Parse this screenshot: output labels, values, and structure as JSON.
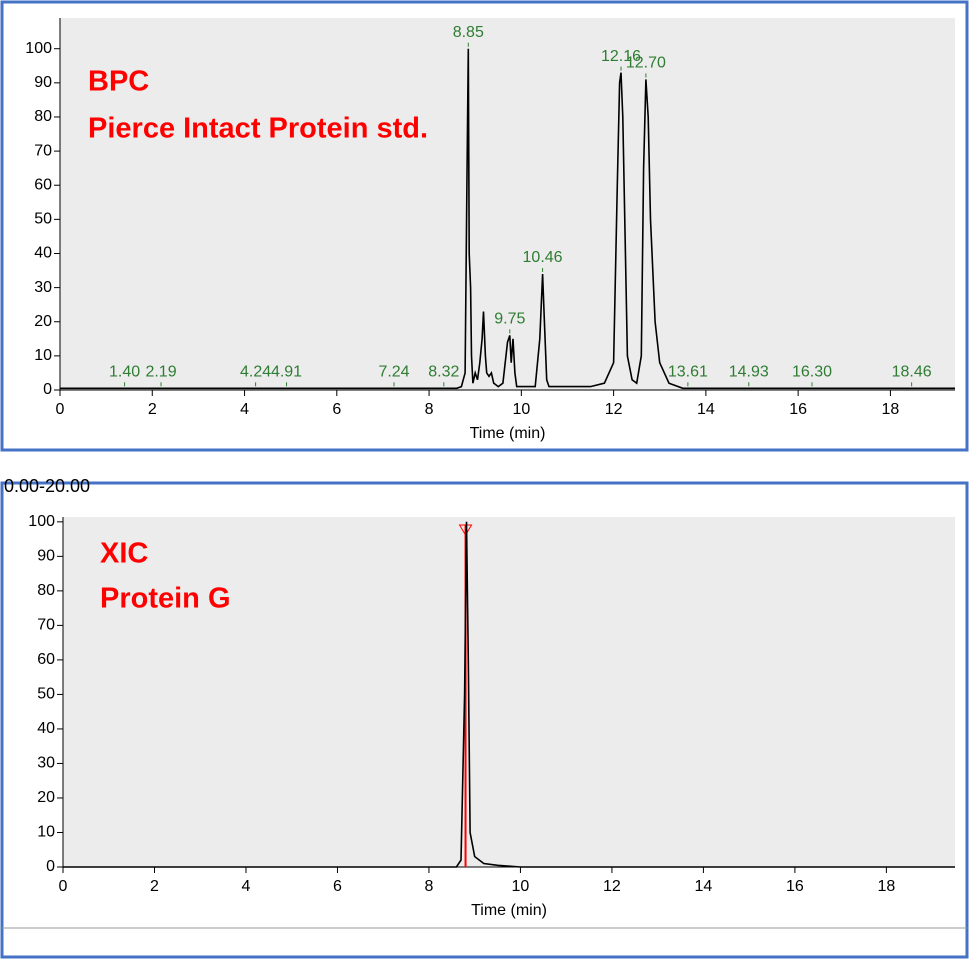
{
  "chart_data": [
    {
      "type": "line",
      "annotations": [
        "BPC",
        "Pierce Intact Protein std."
      ],
      "x_label": "Time (min)",
      "xlim": [
        0,
        19.4
      ],
      "ylim": [
        0,
        109
      ],
      "xticks": [
        0,
        2,
        4,
        6,
        8,
        10,
        12,
        14,
        16,
        18
      ],
      "yticks": [
        0,
        10,
        20,
        30,
        40,
        50,
        60,
        70,
        80,
        90,
        100
      ],
      "color": "#000000",
      "x": [
        0,
        1,
        2,
        3,
        4,
        5,
        6,
        7,
        8,
        8.6,
        8.7,
        8.78,
        8.82,
        8.85,
        8.87,
        8.9,
        8.92,
        8.95,
        9.0,
        9.05,
        9.1,
        9.15,
        9.18,
        9.22,
        9.25,
        9.3,
        9.35,
        9.4,
        9.5,
        9.6,
        9.7,
        9.75,
        9.78,
        9.82,
        9.86,
        9.9,
        10.0,
        10.3,
        10.4,
        10.46,
        10.5,
        10.55,
        10.6,
        11.5,
        11.8,
        12.0,
        12.08,
        12.13,
        12.16,
        12.2,
        12.25,
        12.3,
        12.4,
        12.5,
        12.6,
        12.65,
        12.7,
        12.75,
        12.8,
        12.9,
        13.0,
        13.2,
        13.5,
        19.4
      ],
      "values": [
        0.5,
        0.5,
        0.5,
        0.5,
        0.5,
        0.5,
        0.5,
        0.5,
        0.5,
        0.5,
        1,
        5,
        60,
        100,
        40,
        30,
        10,
        2,
        5,
        3,
        8,
        15,
        23,
        10,
        5,
        4,
        5,
        2,
        1,
        2,
        14,
        16,
        8,
        15,
        5,
        1,
        1,
        1,
        15,
        34,
        20,
        3,
        1,
        1,
        2,
        8,
        60,
        90,
        93,
        80,
        45,
        10,
        3,
        2,
        10,
        65,
        91,
        80,
        50,
        20,
        8,
        2,
        0.5,
        0.5
      ],
      "peaks": {
        "color": "#2e7d32",
        "x": [
          1.4,
          2.19,
          4.24,
          4.91,
          7.24,
          8.32,
          8.85,
          9.75,
          10.46,
          12.16,
          12.7,
          13.61,
          14.93,
          16.3,
          18.46
        ],
        "labels": [
          "1.40",
          "2.19",
          "4.24",
          "4.91",
          "7.24",
          "8.32",
          "8.85",
          "9.75",
          "10.46",
          "12.16",
          "12.70",
          "13.61",
          "14.93",
          "16.30",
          "18.46"
        ],
        "values": [
          0.5,
          0.5,
          0.5,
          0.5,
          0.5,
          0.5,
          100,
          16,
          34,
          93,
          91,
          0.5,
          0.5,
          0.5,
          0.5
        ]
      }
    },
    {
      "type": "line",
      "range_label": "0.00-20.00",
      "annotations": [
        "XIC",
        "Protein G"
      ],
      "x_label": "Time (min)",
      "xlim": [
        0,
        19.5
      ],
      "ylim": [
        0,
        101.4
      ],
      "xticks": [
        0,
        2,
        4,
        6,
        8,
        10,
        12,
        14,
        16,
        18
      ],
      "yticks": [
        0,
        10,
        20,
        30,
        40,
        50,
        60,
        70,
        80,
        90,
        100
      ],
      "color": "#000000",
      "x": [
        0,
        8.6,
        8.7,
        8.78,
        8.82,
        8.86,
        8.9,
        9.0,
        9.2,
        9.5,
        10.0,
        19.5
      ],
      "values": [
        0,
        0,
        2,
        50,
        100,
        60,
        10,
        3,
        1,
        0.5,
        0,
        0
      ],
      "marker": {
        "x": 8.8,
        "color": "#ff0000"
      }
    }
  ]
}
